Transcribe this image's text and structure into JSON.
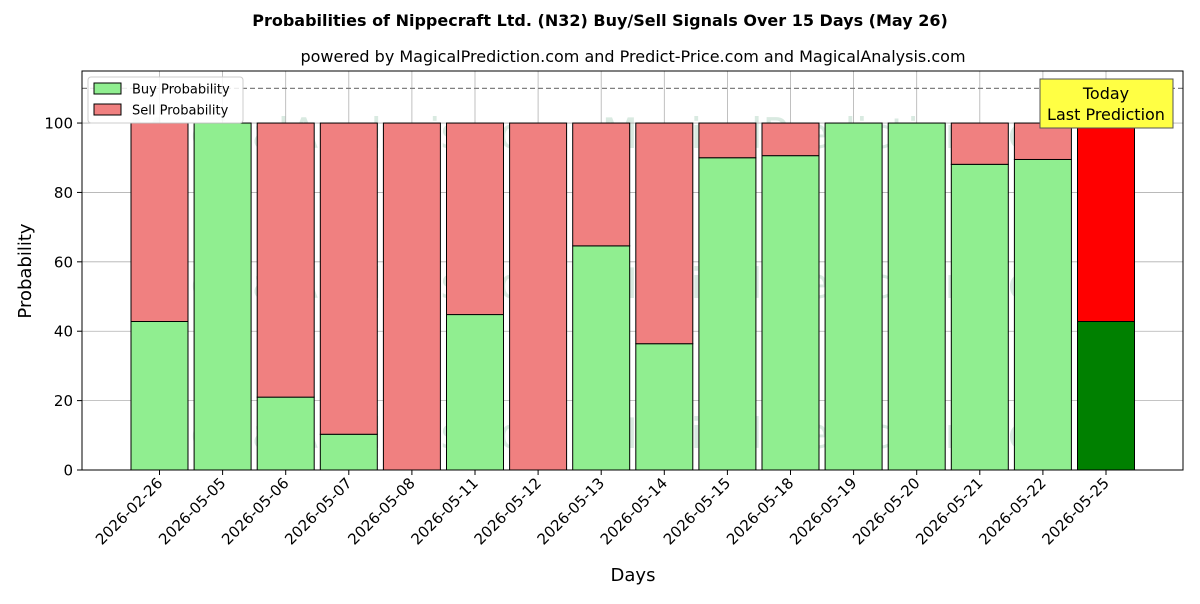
{
  "chart_data": {
    "type": "bar",
    "title": "Probabilities of Nippecraft Ltd. (N32) Buy/Sell Signals Over 15 Days (May 26)",
    "subtitle": "powered by MagicalPrediction.com and Predict-Price.com and MagicalAnalysis.com",
    "xlabel": "Days",
    "ylabel": "Probability",
    "ylim": [
      0,
      115
    ],
    "yticks": [
      0,
      20,
      40,
      60,
      80,
      100
    ],
    "grid": true,
    "legend_position": "top-left",
    "reference_line": 110,
    "categories": [
      "2026-02-26",
      "2026-05-05",
      "2026-05-06",
      "2026-05-07",
      "2026-05-08",
      "2026-05-11",
      "2026-05-12",
      "2026-05-13",
      "2026-05-14",
      "2026-05-15",
      "2026-05-18",
      "2026-05-19",
      "2026-05-20",
      "2026-05-21",
      "2026-05-22",
      "2026-05-25"
    ],
    "series": [
      {
        "name": "Buy Probability",
        "values": [
          42.8,
          100,
          21,
          10.3,
          0,
          44.8,
          0,
          64.6,
          36.4,
          90,
          90.6,
          100,
          100,
          88.1,
          89.5,
          42.8
        ],
        "color": "#90ee90",
        "highlight_color": "#008000"
      },
      {
        "name": "Sell Probability",
        "values": [
          57.2,
          0,
          79,
          89.7,
          100,
          55.2,
          100,
          35.4,
          63.6,
          10,
          9.4,
          0,
          0,
          11.9,
          10.5,
          57.2
        ],
        "color": "#f08080",
        "highlight_color": "#ff0000"
      }
    ],
    "highlight_index": 15,
    "annotation": {
      "lines": [
        "Today",
        "Last Prediction"
      ],
      "bg_color": "#ffff44"
    },
    "watermark": "MagicalAnalysis.com    MagicalPrediction.com"
  }
}
